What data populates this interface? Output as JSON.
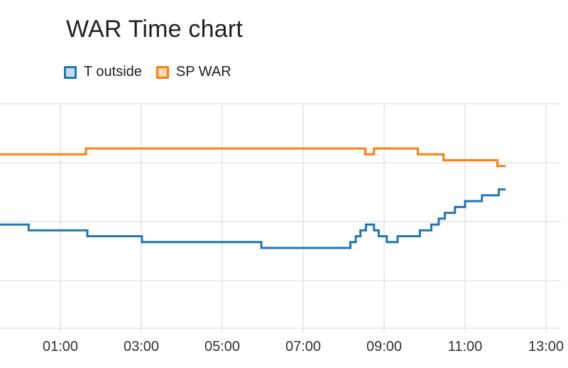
{
  "chart_data": {
    "type": "line",
    "title": "WAR Time chart",
    "xlabel": "",
    "ylabel": "",
    "x_axis": "time of day",
    "xlim": [
      "-0:30",
      "13:00"
    ],
    "x_ticks": [
      "01:00",
      "03:00",
      "05:00",
      "07:00",
      "09:00",
      "11:00",
      "13:00"
    ],
    "y_tick_labels_visible": false,
    "grid": true,
    "legend_position": "top-left",
    "step": true,
    "series": [
      {
        "name": "T outside",
        "color": "#1f77b4",
        "fill": "#c6dbef",
        "points": [
          [
            "-0:30",
            4.0
          ],
          [
            "0:13",
            4.0
          ],
          [
            "0:13",
            3.9
          ],
          [
            "1:40",
            3.9
          ],
          [
            "1:40",
            3.8
          ],
          [
            "3:01",
            3.8
          ],
          [
            "3:01",
            3.7
          ],
          [
            "5:58",
            3.7
          ],
          [
            "5:58",
            3.6
          ],
          [
            "8:10",
            3.6
          ],
          [
            "8:10",
            3.7
          ],
          [
            "8:18",
            3.7
          ],
          [
            "8:18",
            3.8
          ],
          [
            "8:25",
            3.8
          ],
          [
            "8:25",
            3.9
          ],
          [
            "8:33",
            3.9
          ],
          [
            "8:33",
            4.0
          ],
          [
            "8:45",
            4.0
          ],
          [
            "8:45",
            3.9
          ],
          [
            "8:52",
            3.9
          ],
          [
            "8:52",
            3.8
          ],
          [
            "9:04",
            3.8
          ],
          [
            "9:04",
            3.7
          ],
          [
            "9:20",
            3.7
          ],
          [
            "9:20",
            3.8
          ],
          [
            "9:53",
            3.8
          ],
          [
            "9:53",
            3.9
          ],
          [
            "10:10",
            3.9
          ],
          [
            "10:10",
            4.0
          ],
          [
            "10:21",
            4.0
          ],
          [
            "10:21",
            4.1
          ],
          [
            "10:30",
            4.1
          ],
          [
            "10:30",
            4.2
          ],
          [
            "10:45",
            4.2
          ],
          [
            "10:45",
            4.3
          ],
          [
            "11:00",
            4.3
          ],
          [
            "11:00",
            4.4
          ],
          [
            "11:25",
            4.4
          ],
          [
            "11:25",
            4.5
          ],
          [
            "11:50",
            4.5
          ],
          [
            "11:50",
            4.6
          ],
          [
            "12:00",
            4.6
          ]
        ]
      },
      {
        "name": "SP WAR",
        "color": "#ff7f0e",
        "fill": "#fdd9b5",
        "points": [
          [
            "-0:30",
            5.2
          ],
          [
            "1:38",
            5.2
          ],
          [
            "1:38",
            5.3
          ],
          [
            "8:32",
            5.3
          ],
          [
            "8:32",
            5.2
          ],
          [
            "8:45",
            5.2
          ],
          [
            "8:45",
            5.3
          ],
          [
            "9:50",
            5.3
          ],
          [
            "9:50",
            5.2
          ],
          [
            "10:28",
            5.2
          ],
          [
            "10:28",
            5.1
          ],
          [
            "11:48",
            5.1
          ],
          [
            "11:48",
            5.0
          ],
          [
            "12:00",
            5.0
          ]
        ]
      }
    ]
  }
}
